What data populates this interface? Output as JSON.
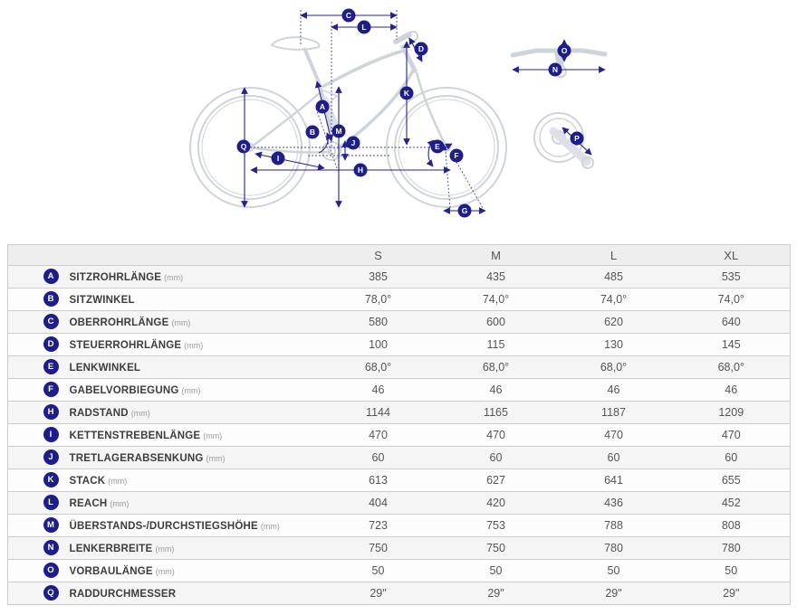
{
  "diagram": {
    "badges": [
      {
        "id": "seat-tube-length",
        "letter": "A"
      },
      {
        "id": "seat-tube-angle",
        "letter": "B"
      },
      {
        "id": "top-tube-length",
        "letter": "C"
      },
      {
        "id": "head-tube-length",
        "letter": "D"
      },
      {
        "id": "head-tube-angle",
        "letter": "E"
      },
      {
        "id": "fork-offset",
        "letter": "F"
      },
      {
        "id": "trail",
        "letter": "G"
      },
      {
        "id": "wheelbase",
        "letter": "H"
      },
      {
        "id": "chainstay-length",
        "letter": "I"
      },
      {
        "id": "bb-drop",
        "letter": "J"
      },
      {
        "id": "stack",
        "letter": "K"
      },
      {
        "id": "reach",
        "letter": "L"
      },
      {
        "id": "standover-height",
        "letter": "M"
      },
      {
        "id": "handlebar-width",
        "letter": "N"
      },
      {
        "id": "stem-length",
        "letter": "O"
      },
      {
        "id": "crank-length",
        "letter": "P"
      },
      {
        "id": "wheel-diameter",
        "letter": "Q"
      }
    ]
  },
  "table": {
    "size_headers": [
      "S",
      "M",
      "L",
      "XL"
    ],
    "rows": [
      {
        "letter": "A",
        "label": "SITZROHRLÄNGE",
        "unit": "(mm)",
        "values": [
          "385",
          "435",
          "485",
          "535"
        ]
      },
      {
        "letter": "B",
        "label": "SITZWINKEL",
        "unit": "",
        "values": [
          "78,0°",
          "74,0°",
          "74,0°",
          "74,0°"
        ]
      },
      {
        "letter": "C",
        "label": "OBERROHRLÄNGE",
        "unit": "(mm)",
        "values": [
          "580",
          "600",
          "620",
          "640"
        ]
      },
      {
        "letter": "D",
        "label": "STEUERROHRLÄNGE",
        "unit": "(mm)",
        "values": [
          "100",
          "115",
          "130",
          "145"
        ]
      },
      {
        "letter": "E",
        "label": "LENKWINKEL",
        "unit": "",
        "values": [
          "68,0°",
          "68,0°",
          "68,0°",
          "68,0°"
        ]
      },
      {
        "letter": "F",
        "label": "GABELVORBIEGUNG",
        "unit": "(mm)",
        "values": [
          "46",
          "46",
          "46",
          "46"
        ]
      },
      {
        "letter": "H",
        "label": "RADSTAND",
        "unit": "(mm)",
        "values": [
          "1144",
          "1165",
          "1187",
          "1209"
        ]
      },
      {
        "letter": "I",
        "label": "KETTENSTREBENLÄNGE",
        "unit": "(mm)",
        "values": [
          "470",
          "470",
          "470",
          "470"
        ]
      },
      {
        "letter": "J",
        "label": "TRETLAGERABSENKUNG",
        "unit": "(mm)",
        "values": [
          "60",
          "60",
          "60",
          "60"
        ]
      },
      {
        "letter": "K",
        "label": "STACK",
        "unit": "(mm)",
        "values": [
          "613",
          "627",
          "641",
          "655"
        ]
      },
      {
        "letter": "L",
        "label": "REACH",
        "unit": "(mm)",
        "values": [
          "404",
          "420",
          "436",
          "452"
        ]
      },
      {
        "letter": "M",
        "label": "ÜBERSTANDS-/DURCHSTIEGSHÖHE",
        "unit": "(mm)",
        "values": [
          "723",
          "753",
          "788",
          "808"
        ]
      },
      {
        "letter": "N",
        "label": "LENKERBREITE",
        "unit": "(mm)",
        "values": [
          "750",
          "750",
          "780",
          "780"
        ]
      },
      {
        "letter": "O",
        "label": "VORBAULÄNGE",
        "unit": "(mm)",
        "values": [
          "50",
          "50",
          "50",
          "50"
        ]
      },
      {
        "letter": "Q",
        "label": "RADDURCHMESSER",
        "unit": "",
        "values": [
          "29\"",
          "29\"",
          "29\"",
          "29\""
        ]
      }
    ]
  },
  "colors": {
    "badge_navy": "#1d1d8c",
    "dimension_line": "#23238e",
    "construction_line": "#4a4aa0",
    "bike_outline": "#cfd4db",
    "row_odd": "#f5f5f5",
    "row_even": "#fdfdfd",
    "header_bg": "#eeeeee",
    "border": "#cccccc"
  }
}
